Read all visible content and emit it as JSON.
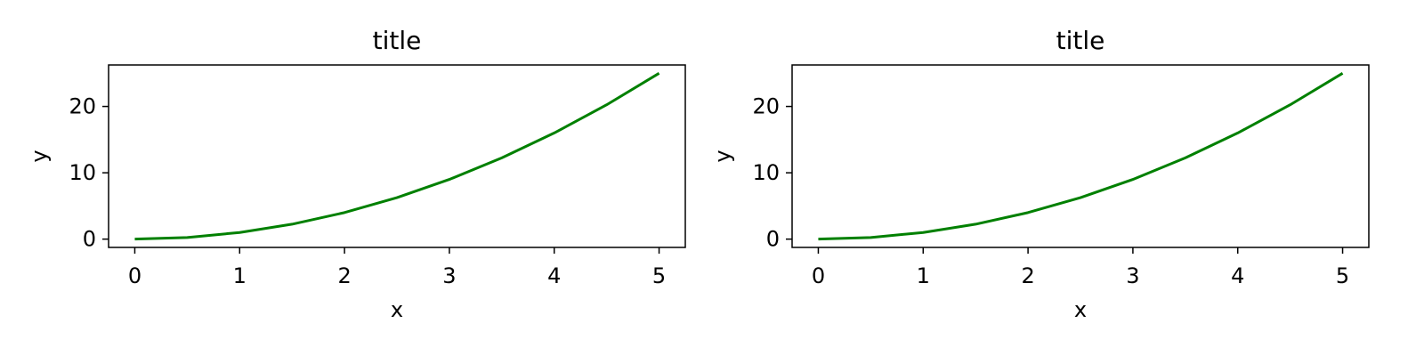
{
  "chart_data": [
    {
      "type": "line",
      "title": "title",
      "xlabel": "x",
      "ylabel": "y",
      "xlim": [
        -0.25,
        5.25
      ],
      "ylim": [
        -1.25,
        26.25
      ],
      "xticks": [
        0,
        1,
        2,
        3,
        4,
        5
      ],
      "xtick_labels": [
        "0",
        "1",
        "2",
        "3",
        "4",
        "5"
      ],
      "yticks": [
        0,
        10,
        20
      ],
      "ytick_labels": [
        "0",
        "10",
        "20"
      ],
      "grid": false,
      "series": [
        {
          "color": "#008000",
          "x": [
            0,
            0.5,
            1,
            1.5,
            2,
            2.5,
            3,
            3.5,
            4,
            4.5,
            5
          ],
          "y": [
            0,
            0.25,
            1,
            2.25,
            4,
            6.25,
            9,
            12.25,
            16,
            20.25,
            25
          ]
        }
      ]
    },
    {
      "type": "line",
      "title": "title",
      "xlabel": "x",
      "ylabel": "y",
      "xlim": [
        -0.25,
        5.25
      ],
      "ylim": [
        -1.25,
        26.25
      ],
      "xticks": [
        0,
        1,
        2,
        3,
        4,
        5
      ],
      "xtick_labels": [
        "0",
        "1",
        "2",
        "3",
        "4",
        "5"
      ],
      "yticks": [
        0,
        10,
        20
      ],
      "ytick_labels": [
        "0",
        "10",
        "20"
      ],
      "grid": false,
      "series": [
        {
          "color": "#008000",
          "x": [
            0,
            0.5,
            1,
            1.5,
            2,
            2.5,
            3,
            3.5,
            4,
            4.5,
            5
          ],
          "y": [
            0,
            0.25,
            1,
            2.25,
            4,
            6.25,
            9,
            12.25,
            16,
            20.25,
            25
          ]
        }
      ]
    }
  ]
}
